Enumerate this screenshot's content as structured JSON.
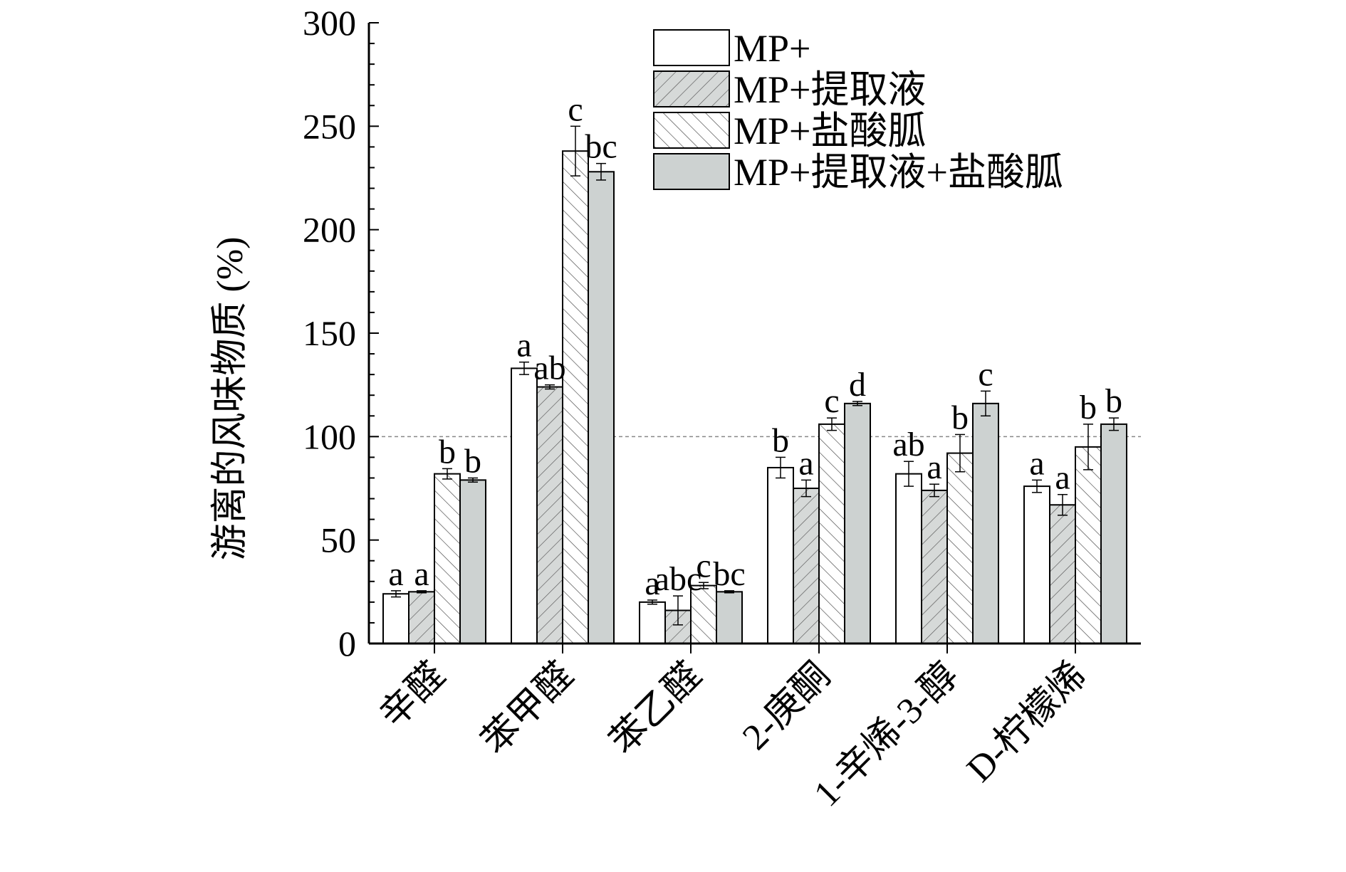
{
  "chart_data": {
    "type": "bar",
    "ylabel": "游离的风味物质 (%)",
    "ylim": [
      0,
      300
    ],
    "yticks": [
      0,
      50,
      100,
      150,
      200,
      250,
      300
    ],
    "reference_line": 100,
    "legend_position": "top-right",
    "categories": [
      "辛醛",
      "苯甲醛",
      "苯乙醛",
      "2-庚酮",
      "1-辛烯-3-醇",
      "D-柠檬烯"
    ],
    "series": [
      {
        "name": "MP+",
        "pattern": "none",
        "fill": "#ffffff",
        "values": [
          24,
          133,
          20,
          85,
          82,
          76
        ],
        "errors": [
          1.5,
          3,
          1,
          5,
          6,
          3
        ],
        "labels": [
          "a",
          "a",
          "a",
          "b",
          "ab",
          "a"
        ]
      },
      {
        "name": "MP+提取液",
        "pattern": "hatch-forward",
        "fill": "#d6d9d8",
        "values": [
          25,
          124,
          16,
          75,
          74,
          67
        ],
        "errors": [
          0.5,
          1,
          7,
          4,
          3,
          5
        ],
        "labels": [
          "a",
          "ab",
          "abc",
          "a",
          "a",
          "a"
        ]
      },
      {
        "name": "MP+盐酸胍",
        "pattern": "hatch-back",
        "fill": "#ffffff",
        "values": [
          82,
          238,
          28,
          106,
          92,
          95
        ],
        "errors": [
          2.5,
          12,
          1.5,
          3,
          9,
          11
        ],
        "labels": [
          "b",
          "c",
          "c",
          "c",
          "b",
          "b"
        ]
      },
      {
        "name": "MP+提取液+盐酸胍",
        "pattern": "solid",
        "fill": "#cdd2d1",
        "values": [
          79,
          228,
          25,
          116,
          116,
          106
        ],
        "errors": [
          1,
          4,
          0.5,
          1,
          6,
          3
        ],
        "labels": [
          "b",
          "bc",
          "bc",
          "d",
          "c",
          "b"
        ]
      }
    ]
  }
}
